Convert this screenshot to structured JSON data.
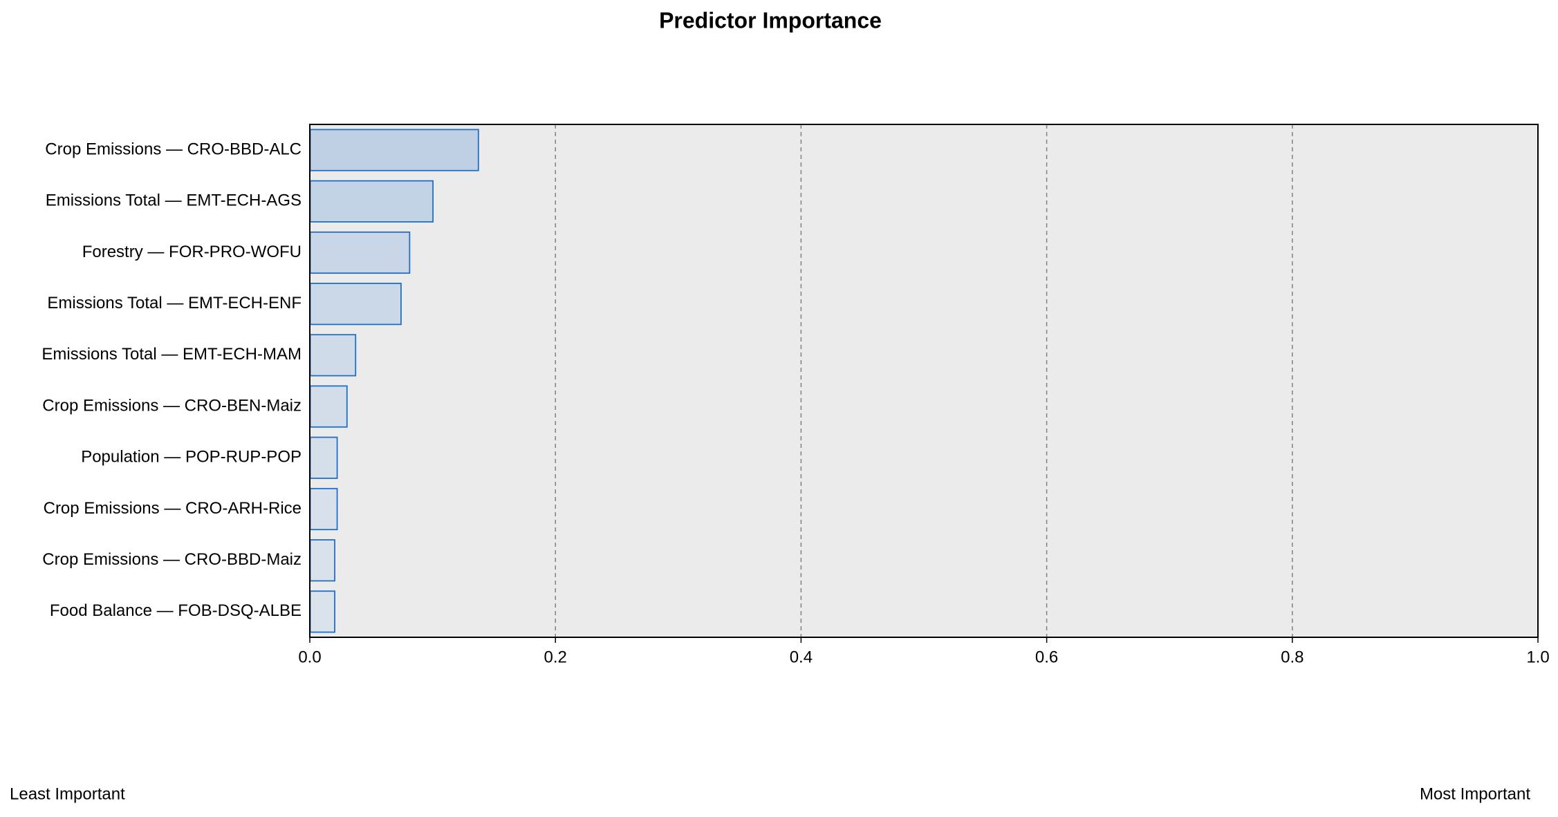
{
  "chart_data": {
    "type": "hbar",
    "title": "Predictor Importance",
    "categories": [
      "Crop Emissions — CRO-BBD-ALC",
      "Emissions Total — EMT-ECH-AGS",
      "Forestry — FOR-PRO-WOFU",
      "Emissions Total — EMT-ECH-ENF",
      "Emissions Total — EMT-ECH-MAM",
      "Crop Emissions — CRO-BEN-Maiz",
      "Population — POP-RUP-POP",
      "Crop Emissions — CRO-ARH-Rice",
      "Crop Emissions — CRO-BBD-Maiz",
      "Food Balance — FOB-DSQ-ALBE"
    ],
    "values": [
      0.137,
      0.1,
      0.081,
      0.074,
      0.037,
      0.03,
      0.022,
      0.022,
      0.02,
      0.02
    ],
    "colors": [
      "#bfd0e4",
      "#c3d3e6",
      "#c8d6e7",
      "#cbd8e8",
      "#cfdbe9",
      "#d2dde9",
      "#d5dfea",
      "#d7e0eb",
      "#d9e1eb",
      "#dae2ec"
    ],
    "edge_color": "#1f6fc5",
    "xlim": [
      0,
      1
    ],
    "xticks": [
      {
        "value": 0,
        "label": "0.0"
      },
      0.2,
      0.4,
      0.6,
      0.8,
      {
        "value": 1,
        "label": "1.0"
      }
    ],
    "grid": true,
    "annotations": [
      "Least Important",
      "Most Important"
    ]
  }
}
